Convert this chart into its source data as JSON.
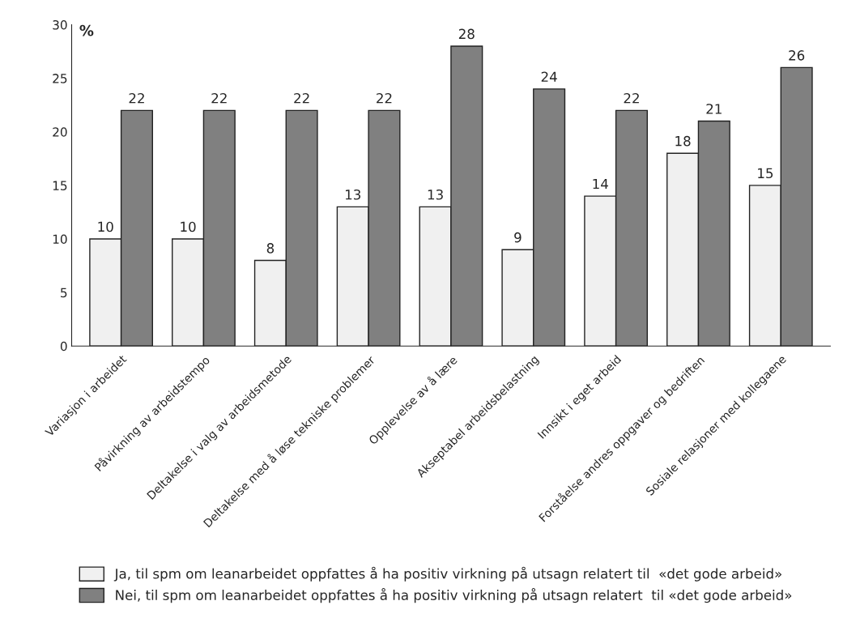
{
  "chart_data": {
    "type": "bar",
    "ylabel": "%",
    "categories": [
      "Variasjon i arbeidet",
      "Påvirkning av arbeidstempo",
      "Deltakelse i valg av arbeidsmetode",
      "Deltakelse med å løse tekniske problemer",
      "Opplevelse av å lære",
      "Akseptabel arbeidsbelastning",
      "Innsikt i eget arbeid",
      "Forståelse andres oppgaver og bedriften",
      "Sosiale relasjoner med kollegaene"
    ],
    "series": [
      {
        "name": "Ja, til spm om leanarbeidet oppfattes å ha positiv virkning på utsagn relatert til  «det gode arbeid»",
        "color": "#f0f0f0",
        "values": [
          10,
          10,
          8,
          13,
          13,
          9,
          14,
          18,
          15
        ]
      },
      {
        "name": "Nei, til spm om leanarbeidet oppfattes å ha positiv virkning på utsagn relatert  til «det gode arbeid»",
        "color": "#808080",
        "values": [
          22,
          22,
          22,
          22,
          28,
          24,
          22,
          21,
          26
        ]
      }
    ],
    "ylim": [
      0,
      30
    ],
    "yticks": [
      0,
      5,
      10,
      15,
      20,
      25,
      30
    ],
    "data_labels": true,
    "grid": false,
    "legend": "bottom"
  }
}
